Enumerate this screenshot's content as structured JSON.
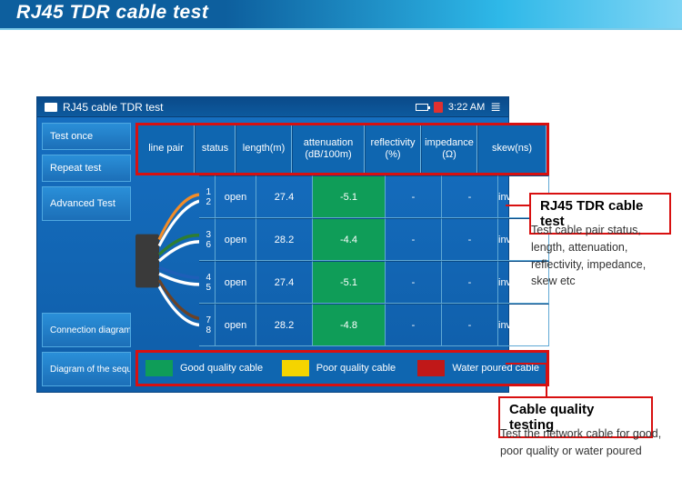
{
  "banner": {
    "title": "RJ45 TDR cable test"
  },
  "statusbar": {
    "title": "RJ45 cable TDR test",
    "time": "3:22 AM"
  },
  "sidebar": {
    "items": [
      {
        "label": "Test once"
      },
      {
        "label": "Repeat test"
      },
      {
        "label": "Advanced Test"
      }
    ],
    "bottom": [
      {
        "label": "Connection diagram"
      },
      {
        "label": "Diagram of the sequence"
      }
    ]
  },
  "table": {
    "headers": [
      "line pair",
      "status",
      "length(m)",
      "attenuation (dB/100m)",
      "reflectivity (%)",
      "impedance (Ω)",
      "skew(ns)"
    ],
    "rows": [
      {
        "pair": [
          "1",
          "2"
        ],
        "status": "open",
        "length": "27.4",
        "att": "-5.1",
        "refl": "-",
        "imp": "-",
        "skew": "invalidation",
        "wire_colors": [
          "#f28c28",
          "#ffffff"
        ]
      },
      {
        "pair": [
          "3",
          "6"
        ],
        "status": "open",
        "length": "28.2",
        "att": "-4.4",
        "refl": "-",
        "imp": "-",
        "skew": "invalidation",
        "wire_colors": [
          "#2e7d32",
          "#ffffff"
        ]
      },
      {
        "pair": [
          "4",
          "5"
        ],
        "status": "open",
        "length": "27.4",
        "att": "-5.1",
        "refl": "-",
        "imp": "-",
        "skew": "invalidation",
        "wire_colors": [
          "#1e5fb8",
          "#ffffff"
        ]
      },
      {
        "pair": [
          "7",
          "8"
        ],
        "status": "open",
        "length": "28.2",
        "att": "-4.8",
        "refl": "-",
        "imp": "-",
        "skew": "invalidation",
        "wire_colors": [
          "#6b4226",
          "#ffffff"
        ]
      }
    ],
    "accent_col": 3,
    "accent_color": "#0f9d58"
  },
  "legend": {
    "items": [
      {
        "color": "#0f9d58",
        "label": "Good quality cable"
      },
      {
        "color": "#f5d400",
        "label": "Poor quality cable"
      },
      {
        "color": "#c01818",
        "label": "Water poured cable"
      }
    ]
  },
  "callouts": [
    {
      "title": "RJ45 TDR cable test",
      "text": "Test cable pair status, length, attenuation, reflectivity, impedance, skew etc"
    },
    {
      "title": "Cable quality testing",
      "text": "Test the network cable for good, poor quality or water poured"
    }
  ],
  "colors": {
    "red": "#d81010",
    "banner": "#0d5f9e",
    "cyan": "#2eb8e8",
    "device_bg_top": "#1670c2",
    "device_bg_bot": "#0f5da8"
  }
}
